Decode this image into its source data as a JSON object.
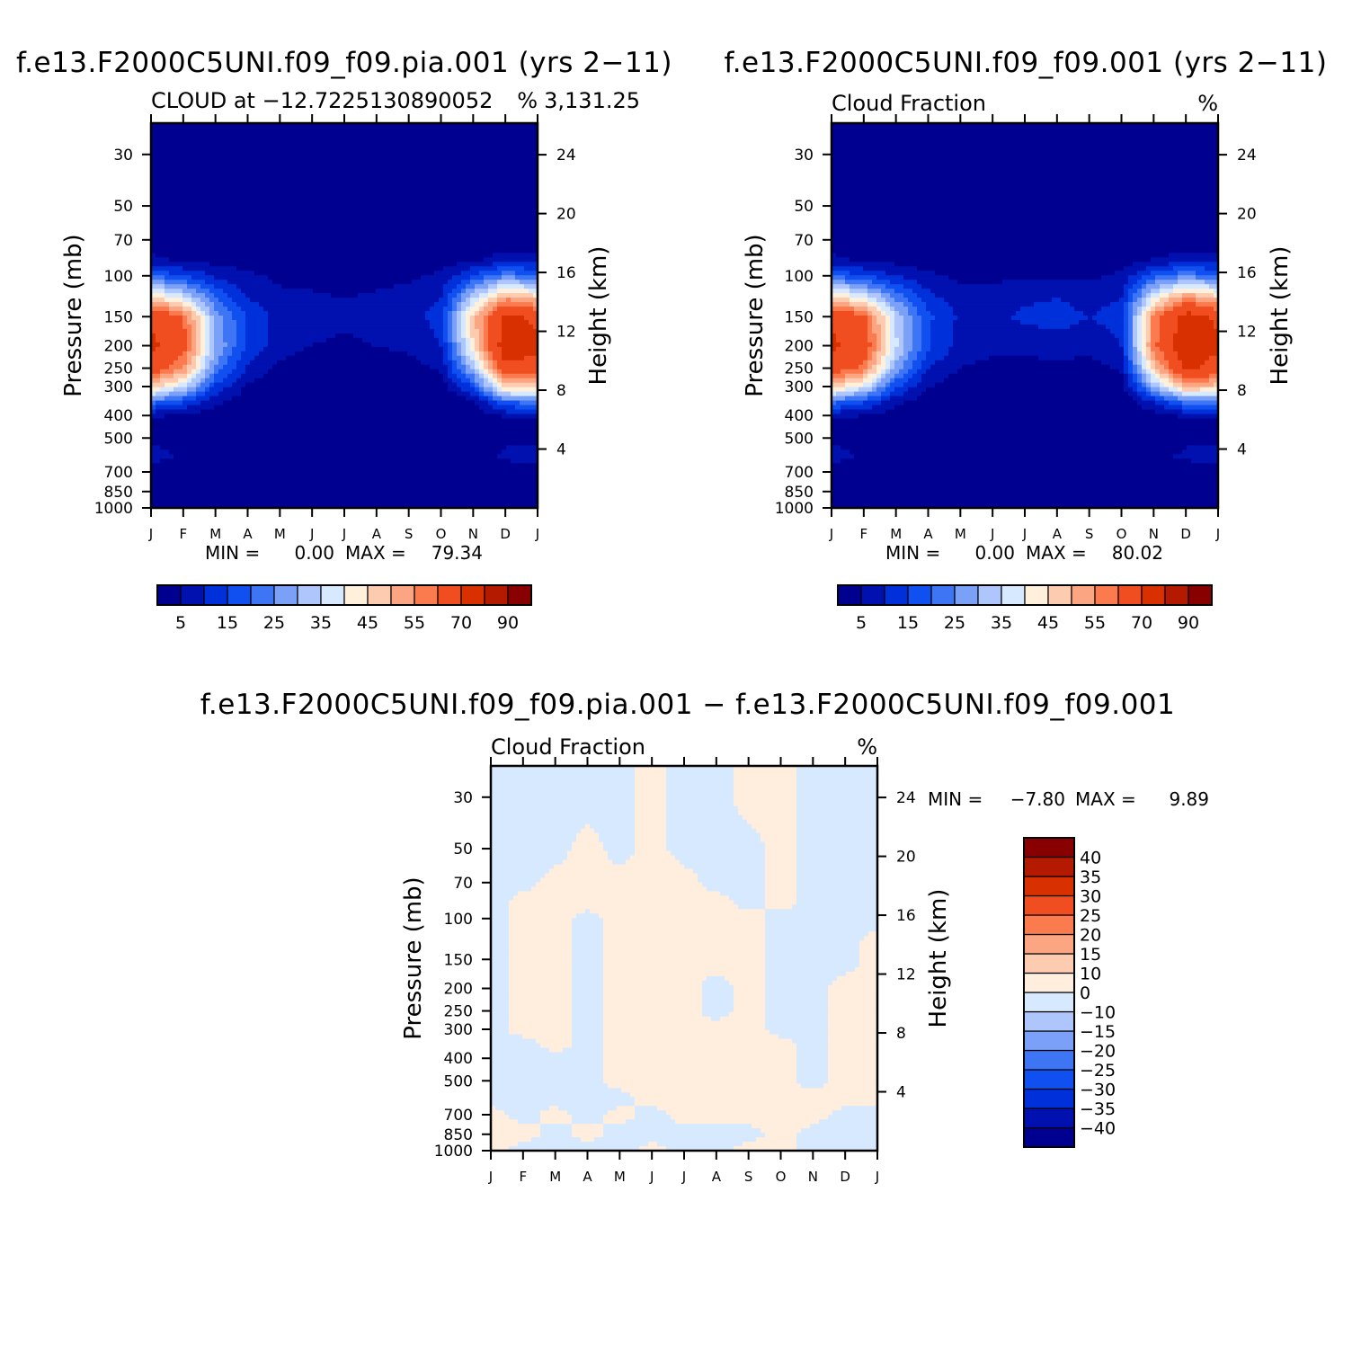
{
  "panels": [
    {
      "id": "p1",
      "title": "f.e13.F2000C5UNI.f09_f09.pia.001 (yrs 2−11)",
      "left_subtitle": "CLOUD at −12.7225130890052",
      "right_subtitle": "%",
      "right_extra": "3,131.25",
      "ylabel": "Pressure (mb)",
      "ylabel2": "Height (km)",
      "min_label": "MIN =",
      "min_value": "0.00",
      "max_label": "MAX =",
      "max_value": "79.34"
    },
    {
      "id": "p2",
      "title": "f.e13.F2000C5UNI.f09_f09.001 (yrs 2−11)",
      "left_subtitle": "Cloud Fraction",
      "right_subtitle": "%",
      "right_extra": "",
      "ylabel": "Pressure (mb)",
      "ylabel2": "Height (km)",
      "min_label": "MIN =",
      "min_value": "0.00",
      "max_label": "MAX =",
      "max_value": "80.02"
    },
    {
      "id": "p3",
      "title": "f.e13.F2000C5UNI.f09_f09.pia.001 − f.e13.F2000C5UNI.f09_f09.001",
      "left_subtitle": "Cloud Fraction",
      "right_subtitle": "%",
      "right_extra": "",
      "ylabel": "Pressure (mb)",
      "ylabel2": "Height (km)",
      "min_label": "MIN =",
      "min_value": "−7.80",
      "max_label": "MAX =",
      "max_value": "9.89"
    }
  ],
  "colorbar_top": {
    "colors": [
      "#000090",
      "#0011b0",
      "#0030d9",
      "#1050f0",
      "#3d75f5",
      "#7aa0f7",
      "#aec6fb",
      "#d6e9ff",
      "#fff0dc",
      "#fdcbb0",
      "#fca583",
      "#fb7a4e",
      "#f04e20",
      "#d93000",
      "#b31a00",
      "#880000"
    ],
    "labels": [
      "5",
      "15",
      "25",
      "35",
      "45",
      "55",
      "70",
      "90"
    ]
  },
  "colorbar_diff": {
    "colors": [
      "#000090",
      "#0011b0",
      "#0030d9",
      "#1050f0",
      "#3d75f5",
      "#7aa0f7",
      "#aec6fb",
      "#d6e9ff",
      "#ffeddd",
      "#fdcbb0",
      "#fca583",
      "#fb7a4e",
      "#f04e20",
      "#d93000",
      "#b31a00",
      "#880000"
    ],
    "labels": [
      "−40",
      "−35",
      "−30",
      "−25",
      "−20",
      "−15",
      "−10",
      "0",
      "10",
      "15",
      "20",
      "25",
      "30",
      "35",
      "40"
    ]
  },
  "chart_data": [
    {
      "type": "heatmap",
      "panel": "p1",
      "x": [
        "J",
        "F",
        "M",
        "A",
        "M",
        "J",
        "J",
        "A",
        "S",
        "O",
        "N",
        "D",
        "J"
      ],
      "y_pressure_mb": [
        30,
        50,
        70,
        100,
        150,
        200,
        250,
        300,
        400,
        500,
        700,
        850,
        1000
      ],
      "y_height_km": [
        4,
        8,
        12,
        16,
        20,
        24
      ],
      "levels": [
        5,
        10,
        15,
        20,
        25,
        30,
        35,
        40,
        45,
        50,
        55,
        60,
        70,
        80,
        90
      ],
      "profile_mb": [
        30,
        50,
        70,
        85,
        100,
        125,
        150,
        200,
        250,
        300,
        350,
        400,
        450,
        500,
        600,
        700,
        850,
        1000
      ],
      "values": [
        [
          0,
          0,
          2,
          6,
          20,
          48,
          68,
          72,
          66,
          48,
          22,
          6,
          3,
          4,
          7,
          3,
          1,
          0
        ],
        [
          0,
          0,
          1,
          4,
          15,
          38,
          60,
          64,
          55,
          36,
          15,
          4,
          2,
          3,
          4,
          2,
          0,
          0
        ],
        [
          0,
          0,
          1,
          3,
          9,
          20,
          28,
          30,
          24,
          14,
          6,
          2,
          1,
          1,
          1,
          1,
          3,
          1
        ],
        [
          0,
          0,
          0,
          2,
          6,
          10,
          14,
          14,
          9,
          4,
          2,
          1,
          0,
          0,
          0,
          0,
          1,
          1
        ],
        [
          0,
          0,
          0,
          1,
          4,
          6,
          8,
          7,
          4,
          1,
          0,
          0,
          0,
          0,
          0,
          0,
          0,
          0
        ],
        [
          0,
          0,
          0,
          1,
          3,
          6,
          7,
          5,
          2,
          0,
          0,
          0,
          0,
          0,
          0,
          0,
          0,
          0
        ],
        [
          0,
          0,
          0,
          1,
          2,
          5,
          6,
          4,
          2,
          0,
          0,
          0,
          0,
          0,
          0,
          0,
          0,
          0
        ],
        [
          0,
          0,
          0,
          1,
          3,
          6,
          8,
          5,
          2,
          0,
          0,
          0,
          0,
          0,
          0,
          0,
          0,
          0
        ],
        [
          0,
          0,
          0,
          1,
          4,
          7,
          8,
          6,
          3,
          0,
          0,
          0,
          0,
          0,
          0,
          0,
          0,
          0
        ],
        [
          0,
          0,
          0,
          2,
          6,
          10,
          12,
          10,
          6,
          2,
          0,
          0,
          0,
          0,
          0,
          0,
          0,
          0
        ],
        [
          0,
          0,
          1,
          4,
          15,
          35,
          48,
          45,
          32,
          16,
          4,
          1,
          0,
          1,
          2,
          1,
          0,
          0
        ],
        [
          0,
          0,
          2,
          7,
          24,
          54,
          72,
          76,
          68,
          48,
          20,
          6,
          3,
          4,
          6,
          2,
          1,
          1
        ],
        [
          0,
          0,
          2,
          6,
          20,
          48,
          68,
          72,
          66,
          48,
          22,
          6,
          3,
          4,
          7,
          3,
          1,
          0
        ]
      ],
      "xlabel": "",
      "ylabel": "Pressure (mb)",
      "ylabel2": "Height (km)",
      "min": 0.0,
      "max": 79.34
    },
    {
      "type": "heatmap",
      "panel": "p2",
      "x": [
        "J",
        "F",
        "M",
        "A",
        "M",
        "J",
        "J",
        "A",
        "S",
        "O",
        "N",
        "D",
        "J"
      ],
      "y_pressure_mb": [
        30,
        50,
        70,
        100,
        150,
        200,
        250,
        300,
        400,
        500,
        700,
        850,
        1000
      ],
      "y_height_km": [
        4,
        8,
        12,
        16,
        20,
        24
      ],
      "levels": [
        5,
        10,
        15,
        20,
        25,
        30,
        35,
        40,
        45,
        50,
        55,
        60,
        70,
        80,
        90
      ],
      "profile_mb": [
        30,
        50,
        70,
        85,
        100,
        125,
        150,
        200,
        250,
        300,
        350,
        400,
        450,
        500,
        600,
        700,
        850,
        1000
      ],
      "values": [
        [
          0,
          0,
          2,
          6,
          20,
          48,
          68,
          72,
          66,
          48,
          22,
          6,
          3,
          4,
          7,
          3,
          1,
          0
        ],
        [
          0,
          0,
          1,
          4,
          15,
          40,
          62,
          66,
          58,
          38,
          16,
          5,
          2,
          3,
          4,
          2,
          1,
          0
        ],
        [
          0,
          0,
          1,
          3,
          10,
          24,
          34,
          36,
          28,
          16,
          6,
          2,
          1,
          1,
          1,
          1,
          4,
          1
        ],
        [
          0,
          0,
          0,
          2,
          6,
          12,
          16,
          16,
          10,
          5,
          2,
          1,
          0,
          0,
          0,
          0,
          2,
          1
        ],
        [
          0,
          0,
          0,
          1,
          4,
          7,
          9,
          8,
          5,
          2,
          1,
          0,
          0,
          0,
          0,
          0,
          1,
          0
        ],
        [
          0,
          0,
          0,
          1,
          4,
          7,
          9,
          7,
          3,
          1,
          0,
          0,
          0,
          0,
          0,
          0,
          0,
          0
        ],
        [
          0,
          0,
          0,
          1,
          4,
          9,
          11,
          7,
          3,
          1,
          0,
          0,
          0,
          0,
          0,
          0,
          0,
          0
        ],
        [
          0,
          0,
          0,
          1,
          4,
          10,
          12,
          8,
          3,
          1,
          0,
          0,
          0,
          0,
          0,
          0,
          0,
          0
        ],
        [
          0,
          0,
          0,
          1,
          4,
          8,
          10,
          7,
          3,
          0,
          0,
          0,
          0,
          0,
          0,
          0,
          0,
          0
        ],
        [
          0,
          0,
          0,
          2,
          6,
          10,
          12,
          10,
          6,
          2,
          0,
          0,
          0,
          0,
          0,
          0,
          0,
          0
        ],
        [
          0,
          0,
          1,
          5,
          18,
          40,
          56,
          58,
          48,
          30,
          10,
          3,
          1,
          1,
          3,
          1,
          2,
          1
        ],
        [
          0,
          0,
          2,
          7,
          24,
          56,
          74,
          78,
          72,
          52,
          22,
          6,
          3,
          4,
          6,
          2,
          3,
          1
        ],
        [
          0,
          0,
          2,
          6,
          20,
          48,
          68,
          72,
          66,
          48,
          22,
          6,
          3,
          4,
          7,
          3,
          1,
          0
        ]
      ],
      "xlabel": "",
      "ylabel": "Pressure (mb)",
      "ylabel2": "Height (km)",
      "min": 0.0,
      "max": 80.02
    },
    {
      "type": "heatmap",
      "panel": "p3",
      "x": [
        "J",
        "F",
        "M",
        "A",
        "M",
        "J",
        "J",
        "A",
        "S",
        "O",
        "N",
        "D",
        "J"
      ],
      "y_pressure_mb": [
        30,
        50,
        70,
        100,
        150,
        200,
        250,
        300,
        400,
        500,
        700,
        850,
        1000
      ],
      "y_height_km": [
        4,
        8,
        12,
        16,
        20,
        24
      ],
      "levels": [
        -40,
        -35,
        -30,
        -25,
        -20,
        -15,
        -10,
        0,
        10,
        15,
        20,
        25,
        30,
        35,
        40
      ],
      "profile_mb": [
        30,
        50,
        70,
        85,
        100,
        125,
        150,
        200,
        250,
        300,
        350,
        400,
        450,
        500,
        600,
        700,
        850,
        1000
      ],
      "values": [
        [
          -0.5,
          -0.5,
          -0.5,
          -0.5,
          -0.5,
          -0.5,
          -0.5,
          -0.5,
          -0.5,
          -0.5,
          -0.5,
          -0.5,
          -0.5,
          -0.5,
          -0.5,
          0.5,
          0.5,
          0.5
        ],
        [
          -0.5,
          -0.5,
          -0.5,
          0.5,
          0.5,
          0.5,
          0.5,
          0.5,
          0.5,
          0.5,
          -0.5,
          -0.5,
          -0.5,
          -0.5,
          -0.5,
          -0.5,
          0.5,
          -0.5
        ],
        [
          -0.5,
          -0.5,
          0.5,
          0.5,
          0.5,
          0.5,
          0.5,
          0.5,
          0.5,
          0.5,
          0.5,
          -0.5,
          -0.5,
          -0.5,
          -0.5,
          0.5,
          -0.5,
          -0.5
        ],
        [
          -0.5,
          0.5,
          0.5,
          0.5,
          -0.5,
          -0.5,
          -0.5,
          -0.5,
          -0.5,
          -0.5,
          -0.5,
          -0.5,
          -0.5,
          -0.5,
          -0.5,
          -0.5,
          0.5,
          -0.5
        ],
        [
          -0.5,
          -0.5,
          0.5,
          0.5,
          0.5,
          0.5,
          0.5,
          0.5,
          0.5,
          0.5,
          0.5,
          0.5,
          0.5,
          0.5,
          -0.5,
          0.5,
          -0.5,
          -0.5
        ],
        [
          0.5,
          0.5,
          0.5,
          0.5,
          0.5,
          0.5,
          0.5,
          0.5,
          0.5,
          0.5,
          0.5,
          0.5,
          0.5,
          0.5,
          0.5,
          -0.5,
          -0.5,
          0.5
        ],
        [
          -0.5,
          -0.5,
          0.5,
          0.5,
          0.5,
          0.5,
          0.5,
          0.5,
          0.5,
          0.5,
          0.5,
          0.5,
          0.5,
          0.5,
          0.5,
          0.5,
          -0.5,
          -0.5
        ],
        [
          -0.5,
          -0.5,
          -0.5,
          0.5,
          0.5,
          0.5,
          0.5,
          -0.5,
          -0.5,
          0.5,
          0.5,
          0.5,
          0.5,
          0.5,
          0.5,
          0.5,
          -0.5,
          -0.5
        ],
        [
          0.5,
          -0.5,
          -0.5,
          -0.5,
          0.5,
          0.5,
          0.5,
          0.5,
          0.5,
          0.5,
          0.5,
          0.5,
          0.5,
          0.5,
          0.5,
          0.5,
          -0.5,
          0.5
        ],
        [
          0.5,
          0.5,
          0.5,
          0.5,
          -0.5,
          -0.5,
          -0.5,
          -0.5,
          -0.5,
          -0.5,
          0.5,
          0.5,
          0.5,
          0.5,
          0.5,
          0.5,
          0.5,
          0.5
        ],
        [
          -0.5,
          -0.5,
          -0.5,
          -0.5,
          -0.5,
          -0.5,
          -0.5,
          -0.5,
          -0.5,
          -0.5,
          -0.5,
          -0.5,
          -0.5,
          -0.5,
          0.5,
          0.5,
          -0.5,
          -0.5
        ],
        [
          -0.5,
          -0.5,
          -0.5,
          -0.5,
          -0.5,
          -0.5,
          -0.5,
          0.5,
          0.5,
          0.5,
          0.5,
          0.5,
          0.5,
          0.5,
          0.5,
          -0.5,
          -0.5,
          -0.5
        ],
        [
          -0.5,
          -0.5,
          -0.5,
          -0.5,
          -0.5,
          0.5,
          0.5,
          0.5,
          0.5,
          0.5,
          0.5,
          0.5,
          0.5,
          0.5,
          0.5,
          -0.5,
          -0.5,
          -0.5
        ]
      ],
      "xlabel": "",
      "ylabel": "Pressure (mb)",
      "ylabel2": "Height (km)",
      "min": -7.8,
      "max": 9.89
    }
  ]
}
